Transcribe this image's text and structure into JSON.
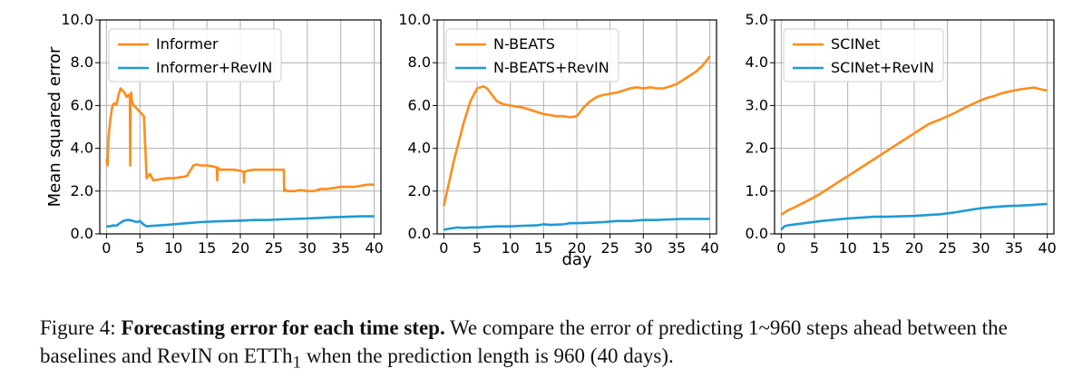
{
  "colors": {
    "baseline": "#ff8c1a",
    "revin": "#1f9ad6",
    "grid": "#b0b0b0",
    "axis": "#000000"
  },
  "shared_xlabel": "day",
  "caption": {
    "label": "Figure 4:",
    "bold": "Forecasting error for each time step.",
    "text_1": "We compare the error of predicting 1~960 steps ahead between the baselines and RevIN on ETTh",
    "subscript": "1",
    "text_2": " when the prediction length is 960 (40 days)."
  },
  "chart_data": [
    {
      "type": "line",
      "title": "",
      "xlabel": "",
      "ylabel": "Mean squared error",
      "xlim": [
        -1,
        41
      ],
      "ylim": [
        0,
        10
      ],
      "xticks": [
        "0",
        "5",
        "10",
        "15",
        "20",
        "25",
        "30",
        "35",
        "40"
      ],
      "yticks": [
        "0.0",
        "2.0",
        "4.0",
        "6.0",
        "8.0",
        "10.0"
      ],
      "grid": true,
      "legend": "top-left",
      "series": [
        {
          "name": "Informer",
          "color": "#ff8c1a",
          "x": [
            0,
            0.15,
            0.3,
            0.6,
            0.9,
            1.2,
            1.5,
            1.8,
            2.1,
            2.4,
            2.7,
            3.0,
            3.3,
            3.5,
            3.55,
            3.6,
            3.65,
            3.7,
            3.8,
            4.1,
            4.4,
            4.7,
            5.0,
            5.3,
            5.6,
            6.0,
            6.5,
            7.0,
            8.0,
            9.0,
            10.0,
            11.0,
            12.0,
            13.0,
            13.5,
            14.0,
            15.0,
            16.0,
            16.5,
            16.55,
            16.6,
            17.0,
            18.0,
            19.0,
            20.0,
            20.5,
            20.55,
            20.6,
            21.0,
            22.0,
            23.0,
            24.0,
            25.0,
            26.0,
            26.5,
            26.55,
            26.6,
            27.0,
            28.0,
            29.0,
            30.0,
            31.0,
            32.0,
            33.0,
            34.0,
            35.0,
            36.0,
            37.0,
            38.0,
            39.0,
            40.0
          ],
          "y": [
            3.5,
            3.2,
            4.5,
            5.4,
            6.0,
            6.1,
            6.05,
            6.5,
            6.8,
            6.7,
            6.6,
            6.4,
            6.5,
            6.4,
            3.2,
            6.5,
            6.3,
            6.6,
            6.2,
            6.0,
            5.9,
            5.8,
            5.7,
            5.6,
            5.5,
            2.6,
            2.8,
            2.5,
            2.55,
            2.6,
            2.6,
            2.65,
            2.7,
            3.2,
            3.25,
            3.2,
            3.2,
            3.15,
            3.1,
            2.5,
            3.1,
            3.0,
            3.0,
            3.0,
            2.95,
            2.9,
            2.4,
            2.9,
            2.95,
            3.0,
            3.0,
            3.0,
            3.0,
            3.0,
            3.0,
            2.0,
            2.1,
            2.0,
            2.0,
            2.05,
            2.0,
            2.0,
            2.1,
            2.1,
            2.15,
            2.2,
            2.2,
            2.2,
            2.25,
            2.3,
            2.3
          ]
        },
        {
          "name": "Informer+RevIN",
          "color": "#1f9ad6",
          "x": [
            0,
            0.5,
            1.0,
            1.5,
            2.0,
            2.5,
            3.0,
            3.5,
            4.0,
            4.5,
            5.0,
            5.5,
            6.0,
            7.0,
            8.0,
            9.0,
            10.0,
            12.0,
            14.0,
            16.0,
            18.0,
            20.0,
            22.0,
            24.0,
            26.0,
            28.0,
            30.0,
            32.0,
            34.0,
            36.0,
            38.0,
            40.0
          ],
          "y": [
            0.35,
            0.35,
            0.4,
            0.38,
            0.5,
            0.6,
            0.65,
            0.65,
            0.6,
            0.55,
            0.6,
            0.45,
            0.35,
            0.38,
            0.4,
            0.42,
            0.45,
            0.5,
            0.55,
            0.58,
            0.6,
            0.62,
            0.65,
            0.65,
            0.68,
            0.7,
            0.72,
            0.75,
            0.78,
            0.8,
            0.82,
            0.82
          ]
        }
      ]
    },
    {
      "type": "line",
      "title": "",
      "xlabel": "day",
      "ylabel": "",
      "xlim": [
        -1,
        41
      ],
      "ylim": [
        0,
        10
      ],
      "xticks": [
        "0",
        "5",
        "10",
        "15",
        "20",
        "25",
        "30",
        "35",
        "40"
      ],
      "yticks": [
        "0.0",
        "2.0",
        "4.0",
        "6.0",
        "8.0",
        "10.0"
      ],
      "grid": true,
      "legend": "top-left",
      "series": [
        {
          "name": "N-BEATS",
          "color": "#ff8c1a",
          "x": [
            0,
            0.5,
            1.0,
            1.5,
            2.0,
            2.5,
            3.0,
            3.5,
            4.0,
            4.5,
            5.0,
            5.5,
            6.0,
            6.5,
            7.0,
            7.5,
            8.0,
            9.0,
            10.0,
            11.0,
            12.0,
            13.0,
            14.0,
            15.0,
            16.0,
            17.0,
            18.0,
            19.0,
            20.0,
            21.0,
            22.0,
            23.0,
            24.0,
            25.0,
            26.0,
            27.0,
            28.0,
            29.0,
            30.0,
            31.0,
            32.0,
            33.0,
            34.0,
            35.0,
            36.0,
            37.0,
            38.0,
            39.0,
            39.5,
            40.0
          ],
          "y": [
            1.3,
            2.0,
            2.7,
            3.4,
            4.0,
            4.6,
            5.2,
            5.7,
            6.2,
            6.5,
            6.8,
            6.85,
            6.9,
            6.8,
            6.6,
            6.4,
            6.2,
            6.05,
            6.0,
            5.95,
            5.9,
            5.8,
            5.7,
            5.6,
            5.55,
            5.5,
            5.5,
            5.45,
            5.5,
            5.9,
            6.2,
            6.4,
            6.5,
            6.55,
            6.6,
            6.7,
            6.8,
            6.85,
            6.8,
            6.85,
            6.8,
            6.8,
            6.9,
            7.0,
            7.2,
            7.4,
            7.6,
            7.9,
            8.1,
            8.3
          ]
        },
        {
          "name": "N-BEATS+RevIN",
          "color": "#1f9ad6",
          "x": [
            0,
            1,
            2,
            3,
            4,
            5,
            6,
            8,
            10,
            12,
            14,
            15,
            16,
            18,
            19,
            20,
            22,
            24,
            26,
            28,
            30,
            32,
            34,
            36,
            38,
            40
          ],
          "y": [
            0.2,
            0.25,
            0.3,
            0.28,
            0.3,
            0.3,
            0.32,
            0.35,
            0.35,
            0.38,
            0.4,
            0.45,
            0.42,
            0.45,
            0.5,
            0.5,
            0.52,
            0.55,
            0.6,
            0.6,
            0.65,
            0.65,
            0.68,
            0.7,
            0.7,
            0.7
          ]
        }
      ]
    },
    {
      "type": "line",
      "title": "",
      "xlabel": "",
      "ylabel": "",
      "xlim": [
        -1,
        41
      ],
      "ylim": [
        0,
        5
      ],
      "xticks": [
        "0",
        "5",
        "10",
        "15",
        "20",
        "25",
        "30",
        "35",
        "40"
      ],
      "yticks": [
        "0.0",
        "1.0",
        "2.0",
        "3.0",
        "4.0",
        "5.0"
      ],
      "grid": true,
      "legend": "top-left",
      "series": [
        {
          "name": "SCINet",
          "color": "#ff8c1a",
          "x": [
            0,
            1,
            2,
            3,
            4,
            5,
            6,
            7,
            8,
            9,
            10,
            11,
            12,
            13,
            14,
            15,
            16,
            17,
            18,
            19,
            20,
            21,
            22,
            23,
            24,
            25,
            26,
            27,
            28,
            29,
            30,
            31,
            32,
            33,
            34,
            35,
            36,
            37,
            38,
            39,
            40
          ],
          "y": [
            0.45,
            0.55,
            0.62,
            0.7,
            0.78,
            0.86,
            0.95,
            1.05,
            1.15,
            1.25,
            1.35,
            1.45,
            1.55,
            1.65,
            1.75,
            1.85,
            1.95,
            2.05,
            2.15,
            2.25,
            2.35,
            2.45,
            2.55,
            2.62,
            2.68,
            2.75,
            2.82,
            2.9,
            2.98,
            3.05,
            3.12,
            3.18,
            3.22,
            3.28,
            3.32,
            3.35,
            3.38,
            3.4,
            3.42,
            3.38,
            3.35
          ]
        },
        {
          "name": "SCINet+RevIN",
          "color": "#1f9ad6",
          "x": [
            0,
            0.5,
            1,
            2,
            3,
            4,
            5,
            6,
            8,
            10,
            12,
            14,
            16,
            18,
            20,
            22,
            24,
            26,
            28,
            30,
            32,
            34,
            36,
            38,
            40
          ],
          "y": [
            0.1,
            0.18,
            0.2,
            0.22,
            0.24,
            0.26,
            0.28,
            0.3,
            0.33,
            0.36,
            0.38,
            0.4,
            0.4,
            0.41,
            0.42,
            0.44,
            0.46,
            0.5,
            0.55,
            0.6,
            0.63,
            0.65,
            0.66,
            0.68,
            0.7
          ]
        }
      ]
    }
  ]
}
